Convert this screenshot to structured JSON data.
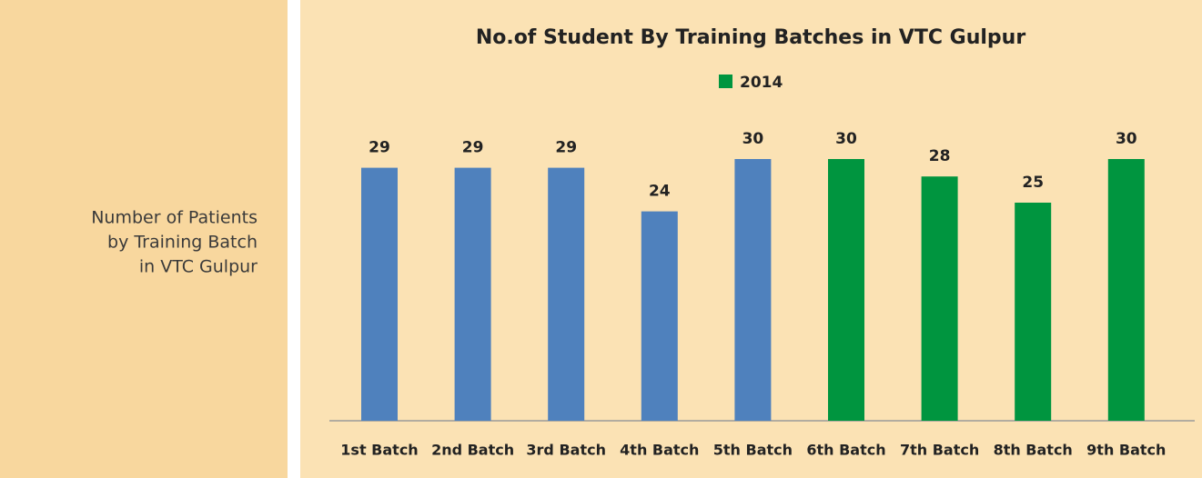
{
  "panel": {
    "lines": [
      "Number of Patients",
      "by Training Batch",
      "in VTC Gulpur"
    ]
  },
  "chart_data": {
    "type": "bar",
    "title": "No.of Student By Training Batches in VTC Gulpur",
    "categories": [
      "1st Batch",
      "2nd Batch",
      "3rd Batch",
      "4th Batch",
      "5th Batch",
      "6th Batch",
      "7th Batch",
      "8th Batch",
      "9th Batch"
    ],
    "series": [
      {
        "name": "2014",
        "color": "#00953f",
        "values": [
          29,
          29,
          29,
          24,
          30,
          30,
          28,
          25,
          30
        ],
        "point_colors": [
          "#4f81bd",
          "#4f81bd",
          "#4f81bd",
          "#4f81bd",
          "#4f81bd",
          "#00953f",
          "#00953f",
          "#00953f",
          "#00953f"
        ]
      }
    ],
    "legend": "top"
  }
}
